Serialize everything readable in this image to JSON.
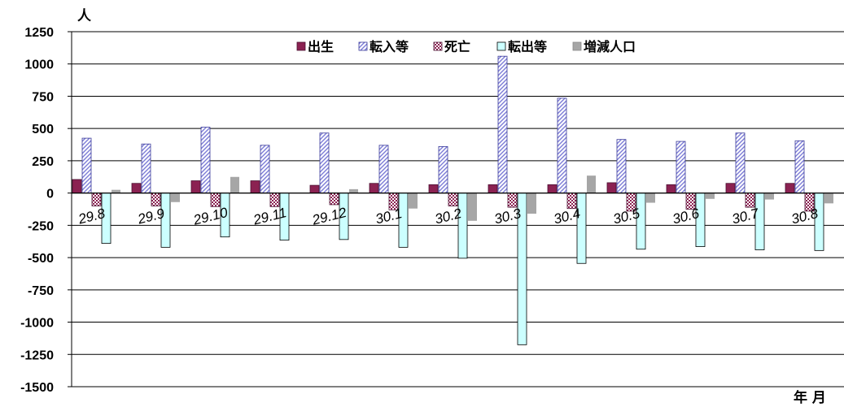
{
  "chart_data": {
    "type": "bar",
    "ylabel": "人",
    "xlabel": "年 月",
    "ylim": [
      -1500,
      1250
    ],
    "yticks": [
      1250,
      1000,
      750,
      500,
      250,
      0,
      -250,
      -500,
      -750,
      -1000,
      -1250,
      -1500
    ],
    "grid": true,
    "legend_position": "top-center",
    "categories": [
      "29.8",
      "29.9",
      "29.10",
      "29.11",
      "29.12",
      "30.1",
      "30.2",
      "30.3",
      "30.4",
      "30.5",
      "30.6",
      "30.7",
      "30.8"
    ],
    "series": [
      {
        "name": "出生",
        "pattern": "solid",
        "color": "#8b2252",
        "values": [
          105,
          75,
          95,
          95,
          60,
          75,
          65,
          65,
          65,
          80,
          65,
          75,
          75
        ]
      },
      {
        "name": "転入等",
        "pattern": "hatch",
        "color": "#7b7bd6",
        "values": [
          425,
          380,
          510,
          370,
          465,
          370,
          360,
          1060,
          735,
          415,
          400,
          465,
          405
        ]
      },
      {
        "name": "死亡",
        "pattern": "checker",
        "color": "#8b2252",
        "values": [
          -100,
          -100,
          -105,
          -105,
          -90,
          -130,
          -100,
          -110,
          -120,
          -140,
          -125,
          -110,
          -140
        ]
      },
      {
        "name": "転出等",
        "pattern": "solid",
        "color": "#ccffff",
        "values": [
          -390,
          -420,
          -340,
          -365,
          -360,
          -420,
          -505,
          -1175,
          -545,
          -435,
          -415,
          -440,
          -445
        ]
      },
      {
        "name": "増減人口",
        "pattern": "solid",
        "color": "#a6a6a6",
        "values": [
          25,
          -70,
          125,
          0,
          30,
          -120,
          -215,
          -160,
          135,
          -75,
          -45,
          -50,
          -80
        ]
      }
    ]
  }
}
